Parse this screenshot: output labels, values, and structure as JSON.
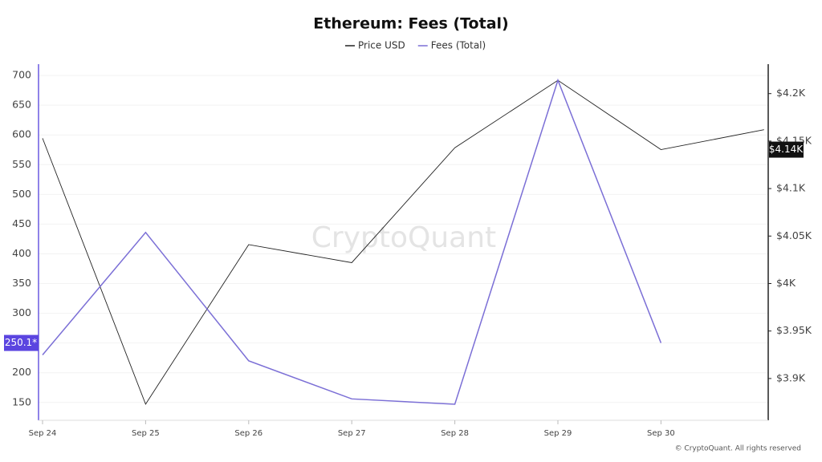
{
  "chart_data": {
    "type": "line",
    "title": "Ethereum: Fees (Total)",
    "watermark": "CryptoQuant",
    "credit": "© CryptoQuant. All rights reserved",
    "categories": [
      "Sep 24",
      "Sep 25",
      "Sep 26",
      "Sep 27",
      "Sep 28",
      "Sep 29",
      "Sep 30",
      null
    ],
    "series": [
      {
        "name": "Price USD",
        "color": "#222222",
        "axis": "y2",
        "values": [
          4153,
          3873,
          4041,
          4022,
          4143,
          4214,
          4141,
          4162
        ],
        "value_labels": [
          null,
          null,
          null,
          null,
          null,
          null,
          "$4.14K",
          null
        ]
      },
      {
        "name": "Fees (Total)",
        "color": "#7b6fd6",
        "values": [
          230,
          436,
          220,
          156,
          147,
          692,
          250.1,
          null
        ],
        "value_labels": [
          null,
          null,
          null,
          null,
          null,
          null,
          "250.1*",
          null
        ]
      }
    ],
    "ylim": [
      120,
      719
    ],
    "yticks": [
      150,
      200,
      250,
      300,
      350,
      400,
      450,
      500,
      550,
      600,
      650,
      700
    ],
    "y2lim": [
      3856,
      4231
    ],
    "y2ticks": [
      {
        "value": 3900,
        "label": "$3.9K"
      },
      {
        "value": 3950,
        "label": "$3.95K"
      },
      {
        "value": 4000,
        "label": "$4K"
      },
      {
        "value": 4050,
        "label": "$4.05K"
      },
      {
        "value": 4100,
        "label": "$4.1K"
      },
      {
        "value": 4150,
        "label": "$4.15K"
      },
      {
        "value": 4200,
        "label": "$4.2K"
      }
    ],
    "grid": true
  }
}
